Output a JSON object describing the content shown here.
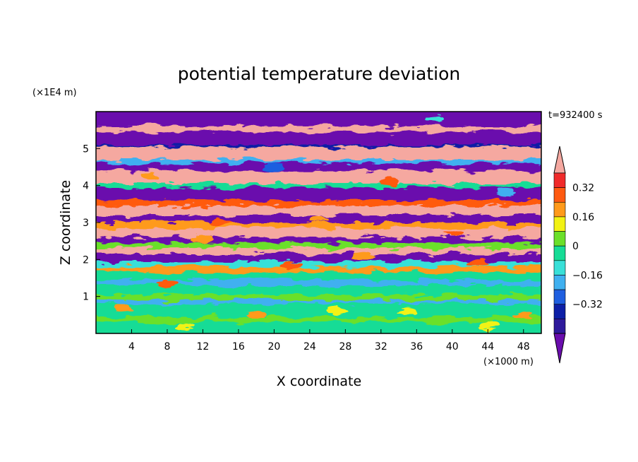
{
  "chart_data": {
    "type": "heatmap",
    "title": "potential temperature deviation",
    "xlabel": "X coordinate",
    "ylabel": "Z coordinate",
    "x_unit": "(×1000 m)",
    "y_unit": "(×1E4 m)",
    "time_label": "t=932400 s",
    "xlim": [
      0,
      50
    ],
    "ylim": [
      0,
      6
    ],
    "x_ticks": [
      4,
      8,
      12,
      16,
      20,
      24,
      28,
      32,
      36,
      40,
      44,
      48
    ],
    "y_ticks": [
      1,
      2,
      3,
      4,
      5
    ],
    "colorbar": {
      "levels": [
        -0.48,
        -0.4,
        -0.32,
        -0.24,
        -0.16,
        -0.08,
        0,
        0.08,
        0.16,
        0.24,
        0.32,
        0.4
      ],
      "colors": [
        "#6a0dad",
        "#2e1a9c",
        "#0d1fa6",
        "#1f5fe0",
        "#3fb0f0",
        "#38e0d8",
        "#16dc96",
        "#6be02a",
        "#f2f214",
        "#ff9a1a",
        "#ff5a10",
        "#f02a2a",
        "#f5a8a0"
      ],
      "labels": [
        "0.32",
        "0.16",
        "0",
        "−0.16",
        "−0.32"
      ],
      "label_values": [
        0.32,
        0.16,
        0,
        -0.16,
        -0.32
      ]
    },
    "grid": false
  }
}
